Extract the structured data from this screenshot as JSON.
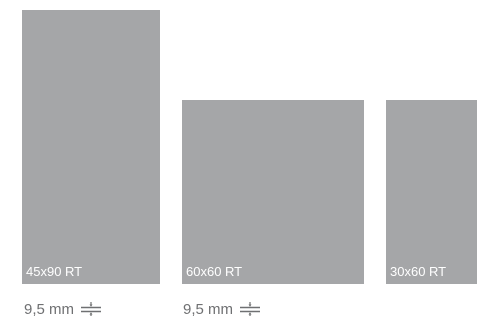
{
  "tiles": [
    {
      "label": "45x90 RT"
    },
    {
      "label": "60x60 RT"
    },
    {
      "label": "30x60 RT"
    }
  ],
  "thickness": [
    {
      "value": "9,5 mm",
      "icon": "thickness-icon"
    },
    {
      "value": "9,5 mm",
      "icon": "thickness-icon"
    }
  ],
  "colors": {
    "tile": "#a5a6a8",
    "label": "#ffffff",
    "thickness_text": "#6f7072"
  }
}
